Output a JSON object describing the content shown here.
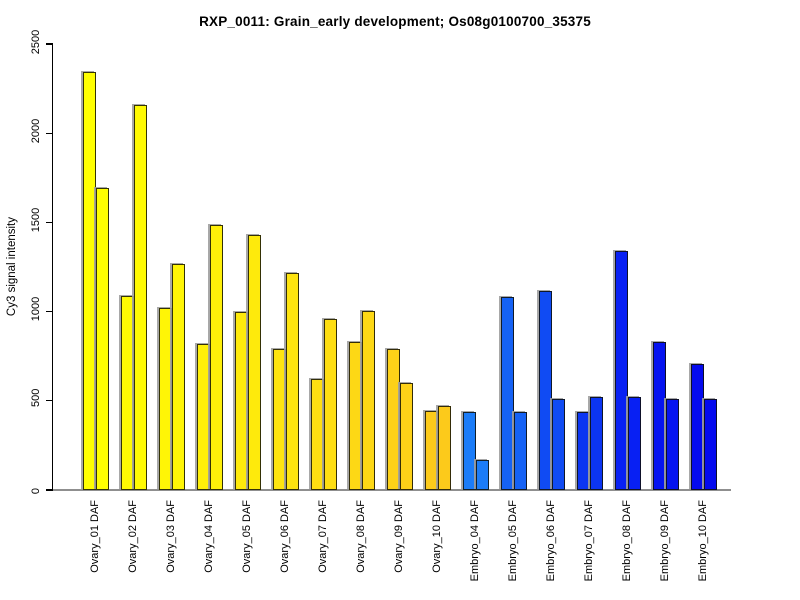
{
  "chart_data": {
    "type": "bar",
    "title": "RXP_0011: Grain_early development; Os08g0100700_35375",
    "ylabel": "Cy3 signal intensity",
    "xlabel": "",
    "ylim": [
      0,
      2500
    ],
    "yticks": [
      0,
      500,
      1000,
      1500,
      2000,
      2500
    ],
    "bars_per_group": 2,
    "grid": false,
    "legend": false,
    "groups": [
      {
        "label": "Ovary_01 DAF",
        "color": "#FFFF00",
        "values": [
          2345,
          1695
        ]
      },
      {
        "label": "Ovary_02 DAF",
        "color": "#FFFA03",
        "values": [
          1085,
          2160
        ]
      },
      {
        "label": "Ovary_03 DAF",
        "color": "#FFF506",
        "values": [
          1020,
          1265
        ]
      },
      {
        "label": "Ovary_04 DAF",
        "color": "#FFF009",
        "values": [
          820,
          1485
        ]
      },
      {
        "label": "Ovary_05 DAF",
        "color": "#FEEA0C",
        "values": [
          1000,
          1430
        ]
      },
      {
        "label": "Ovary_06 DAF",
        "color": "#FEE40F",
        "values": [
          790,
          1215
        ]
      },
      {
        "label": "Ovary_07 DAF",
        "color": "#FEDE12",
        "values": [
          620,
          960
        ]
      },
      {
        "label": "Ovary_08 DAF",
        "color": "#FDD815",
        "values": [
          830,
          1005
        ]
      },
      {
        "label": "Ovary_09 DAF",
        "color": "#FDD118",
        "values": [
          790,
          600
        ]
      },
      {
        "label": "Ovary_10 DAF",
        "color": "#FCCA1B",
        "values": [
          445,
          470
        ]
      },
      {
        "label": "Embryo_04 DAF",
        "color": "#1B7CF8",
        "values": [
          435,
          170
        ]
      },
      {
        "label": "Embryo_05 DAF",
        "color": "#1562F5",
        "values": [
          1080,
          435
        ]
      },
      {
        "label": "Embryo_06 DAF",
        "color": "#104BF3",
        "values": [
          1115,
          510
        ]
      },
      {
        "label": "Embryo_07 DAF",
        "color": "#0C35F2",
        "values": [
          440,
          520
        ]
      },
      {
        "label": "Embryo_08 DAF",
        "color": "#0820F3",
        "values": [
          1340,
          520
        ]
      },
      {
        "label": "Embryo_09 DAF",
        "color": "#0513F0",
        "values": [
          830,
          510
        ]
      },
      {
        "label": "Embryo_10 DAF",
        "color": "#040AEE",
        "values": [
          705,
          510
        ]
      }
    ]
  },
  "colors": {
    "background": "#ffffff",
    "axis": "#000000",
    "baseline": "#8f8f8f",
    "bar_border": "#0f0f05",
    "bar_shadow": "#9e9e9e",
    "text": "#000000"
  }
}
